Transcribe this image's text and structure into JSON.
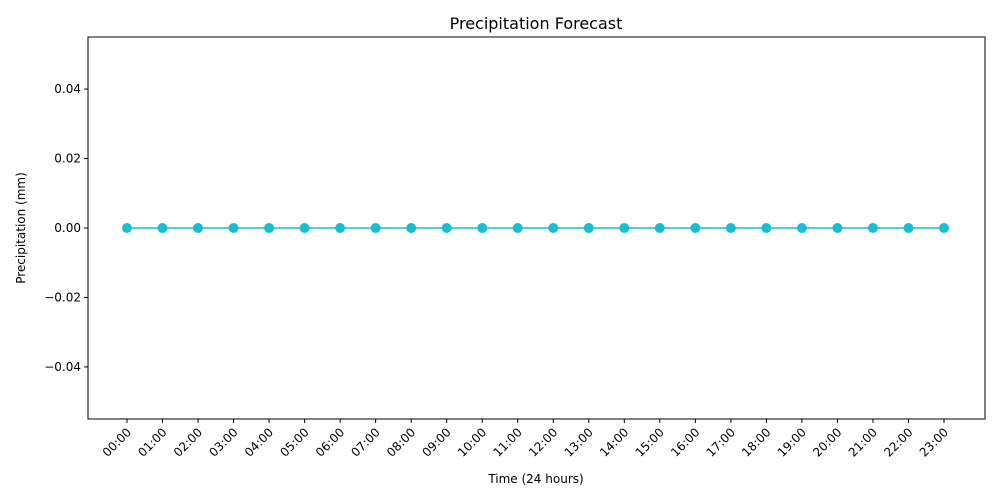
{
  "chart_data": {
    "type": "line",
    "title": "Precipitation Forecast",
    "xlabel": "Time (24 hours)",
    "ylabel": "Precipitation (mm)",
    "categories": [
      "00:00",
      "01:00",
      "02:00",
      "03:00",
      "04:00",
      "05:00",
      "06:00",
      "07:00",
      "08:00",
      "09:00",
      "10:00",
      "11:00",
      "12:00",
      "13:00",
      "14:00",
      "15:00",
      "16:00",
      "17:00",
      "18:00",
      "19:00",
      "20:00",
      "21:00",
      "22:00",
      "23:00"
    ],
    "series": [
      {
        "values": [
          0,
          0,
          0,
          0,
          0,
          0,
          0,
          0,
          0,
          0,
          0,
          0,
          0,
          0,
          0,
          0,
          0,
          0,
          0,
          0,
          0,
          0,
          0,
          0
        ],
        "color": "#17becf",
        "marker": "circle"
      }
    ],
    "ylim": [
      -0.055,
      0.055
    ],
    "yticks": [
      -0.04,
      -0.02,
      0.0,
      0.02,
      0.04
    ],
    "ytick_labels": [
      "−0.04",
      "−0.02",
      "0.00",
      "0.02",
      "0.04"
    ],
    "grid": false
  }
}
